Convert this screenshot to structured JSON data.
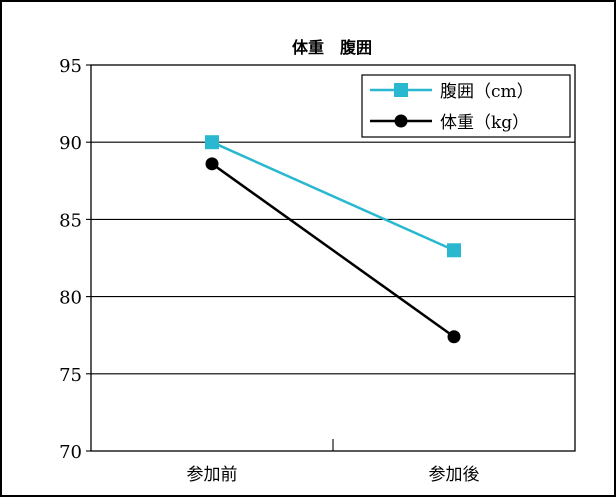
{
  "chart_data": {
    "type": "line",
    "title": "体重　腹囲",
    "categories": [
      "参加前",
      "参加後"
    ],
    "ylim": [
      70,
      95
    ],
    "yticks": [
      70,
      75,
      80,
      85,
      90,
      95
    ],
    "grid": true,
    "legend_position": "top-right",
    "series": [
      {
        "name": "腹囲（cm）",
        "values": [
          90.0,
          83.0
        ],
        "color": "#29b8cf",
        "marker": "square"
      },
      {
        "name": "体重（kg）",
        "values": [
          88.6,
          77.4
        ],
        "color": "#000000",
        "marker": "circle"
      }
    ]
  }
}
